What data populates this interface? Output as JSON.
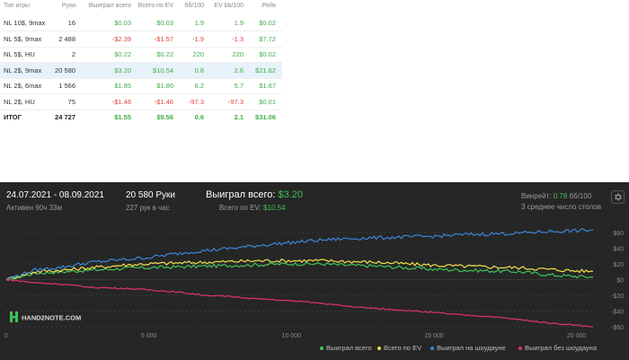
{
  "table": {
    "headers": [
      "Тип игры",
      "Руки",
      "Выиграл всего",
      "Всего по EV",
      "бб/100",
      "EV bb/100",
      "Рейк"
    ],
    "rows": [
      {
        "game": "NL 10$, 9max",
        "hands": "16",
        "won": "$0.03",
        "ev": "$0.03",
        "bb100": "1.9",
        "evbb": "1.9",
        "rake": "$0.02"
      },
      {
        "game": "NL 5$, 9max",
        "hands": "2 488",
        "won": "-$2.39",
        "ev": "-$1.57",
        "bb100": "-1.9",
        "evbb": "-1.3",
        "rake": "$7.72"
      },
      {
        "game": "NL 5$, HU",
        "hands": "2",
        "won": "$0.22",
        "ev": "$0.22",
        "bb100": "220",
        "evbb": "220",
        "rake": "$0.02"
      },
      {
        "game": "NL 2$, 9max",
        "hands": "20 580",
        "won": "$3.20",
        "ev": "$10.54",
        "bb100": "0.8",
        "evbb": "2.6",
        "rake": "$21.62"
      },
      {
        "game": "NL 2$, 6max",
        "hands": "1 566",
        "won": "$1.95",
        "ev": "$1.80",
        "bb100": "6.2",
        "evbb": "5.7",
        "rake": "$1.67"
      },
      {
        "game": "NL 2$, HU",
        "hands": "75",
        "won": "-$1.46",
        "ev": "-$1.46",
        "bb100": "-97.3",
        "evbb": "-97.3",
        "rake": "$0.01"
      }
    ],
    "total": {
      "game": "ИТОГ",
      "hands": "24 727",
      "won": "$1.55",
      "ev": "$9.56",
      "bb100": "0.6",
      "evbb": "2.1",
      "rake": "$31.06"
    }
  },
  "summary": {
    "date_range": "24.07.2021 - 08.09.2021",
    "active": "Активен 90ч 33м",
    "hands": "20 580 Руки",
    "rate": "227 рук в час",
    "won_label": "Выиграл всего:",
    "won_value": "$3.20",
    "ev_label": "Всего по EV:",
    "ev_value": "$10.54",
    "winrate_label": "Винрейт:",
    "winrate_value": "0.78",
    "winrate_unit": "бб/100",
    "tables": "3 среднее число столов"
  },
  "legend": [
    "Выиграл всего",
    "Всего по EV",
    "Выиграл на шоудауне",
    "Выиграл без шоудауна"
  ],
  "logo_text": "HAND2NOTE.COM",
  "icons": {
    "settings": "gear-icon"
  },
  "colors": {
    "total": "#3fc35a",
    "ev": "#f2e24a",
    "showdown": "#3b86d8",
    "nonshowdown": "#e0336b"
  },
  "chart_data": {
    "type": "line",
    "x_ticks": [
      0,
      5000,
      10000,
      15000,
      20000
    ],
    "x_tick_labels": [
      "0",
      "5 000",
      "10 000",
      "15 000",
      "20 000"
    ],
    "y_ticks": [
      60,
      40,
      20,
      0,
      -20,
      -40,
      -60
    ],
    "y_tick_labels": [
      "$60",
      "$40",
      "$20",
      "$0",
      "-$20",
      "-$40",
      "-$60"
    ],
    "xlim": [
      0,
      20580
    ],
    "ylim": [
      -60,
      70
    ],
    "x": [
      0,
      1000,
      2000,
      3000,
      4000,
      5000,
      6000,
      7000,
      8000,
      9000,
      10000,
      11000,
      12000,
      13000,
      14000,
      15000,
      16000,
      17000,
      18000,
      19000,
      20000,
      20580
    ],
    "series": [
      {
        "name": "Выиграл всего",
        "values": [
          0,
          8,
          10,
          12,
          14,
          15,
          16,
          17,
          18,
          19,
          20,
          20,
          18,
          17,
          15,
          13,
          12,
          11,
          10,
          6,
          4,
          3.2
        ]
      },
      {
        "name": "Всего по EV",
        "values": [
          0,
          10,
          12,
          15,
          18,
          20,
          21,
          22,
          23,
          24,
          24,
          24,
          23,
          22,
          20,
          18,
          17,
          16,
          15,
          13,
          11,
          10.5
        ]
      },
      {
        "name": "Выиграл на шоудауне",
        "values": [
          0,
          12,
          16,
          22,
          25,
          28,
          33,
          37,
          40,
          44,
          47,
          50,
          52,
          53,
          54,
          55,
          57,
          58,
          59,
          61,
          62,
          63
        ]
      },
      {
        "name": "Выиграл без шоудауна",
        "values": [
          0,
          -4,
          -6,
          -10,
          -11,
          -13,
          -16,
          -20,
          -22,
          -25,
          -27,
          -30,
          -34,
          -37,
          -39,
          -42,
          -45,
          -47,
          -51,
          -55,
          -58,
          -60
        ]
      }
    ]
  }
}
